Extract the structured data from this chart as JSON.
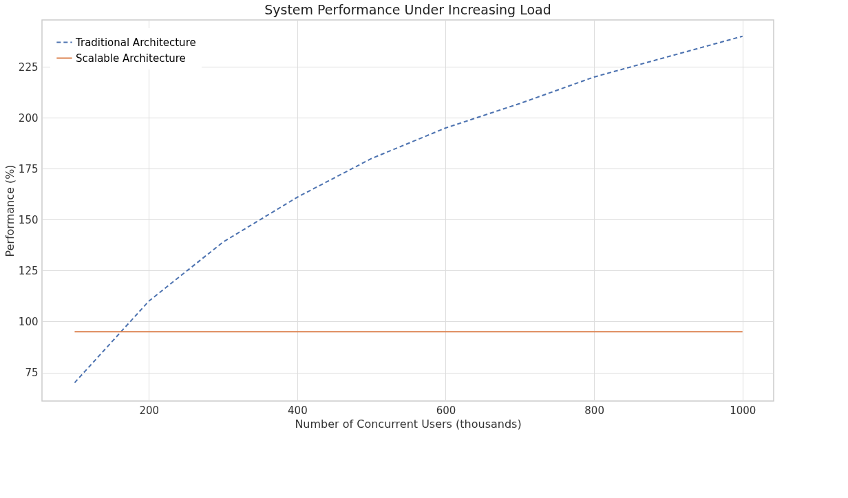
{
  "chart_data": {
    "type": "line",
    "title": "System Performance Under Increasing Load",
    "xlabel": "Number of Concurrent Users (thousands)",
    "ylabel": "Performance (%)",
    "x": [
      100,
      200,
      300,
      400,
      500,
      600,
      700,
      800,
      900,
      1000
    ],
    "series": [
      {
        "name": "Traditional Architecture",
        "color": "#4c72b0",
        "line_style": "dashed",
        "values": [
          70,
          110,
          139,
          161,
          180,
          195,
          207,
          220,
          230,
          240
        ]
      },
      {
        "name": "Scalable Architecture",
        "color": "#dd8452",
        "line_style": "solid",
        "values": [
          95,
          95,
          95,
          95,
          95,
          95,
          95,
          95,
          95,
          95
        ]
      }
    ],
    "xlim": [
      56,
      1042
    ],
    "ylim": [
      61,
      248
    ],
    "xticks": [
      200,
      400,
      600,
      800,
      1000
    ],
    "yticks": [
      75,
      100,
      125,
      150,
      175,
      200,
      225
    ],
    "grid": true,
    "legend": "top left",
    "marker": "none"
  }
}
